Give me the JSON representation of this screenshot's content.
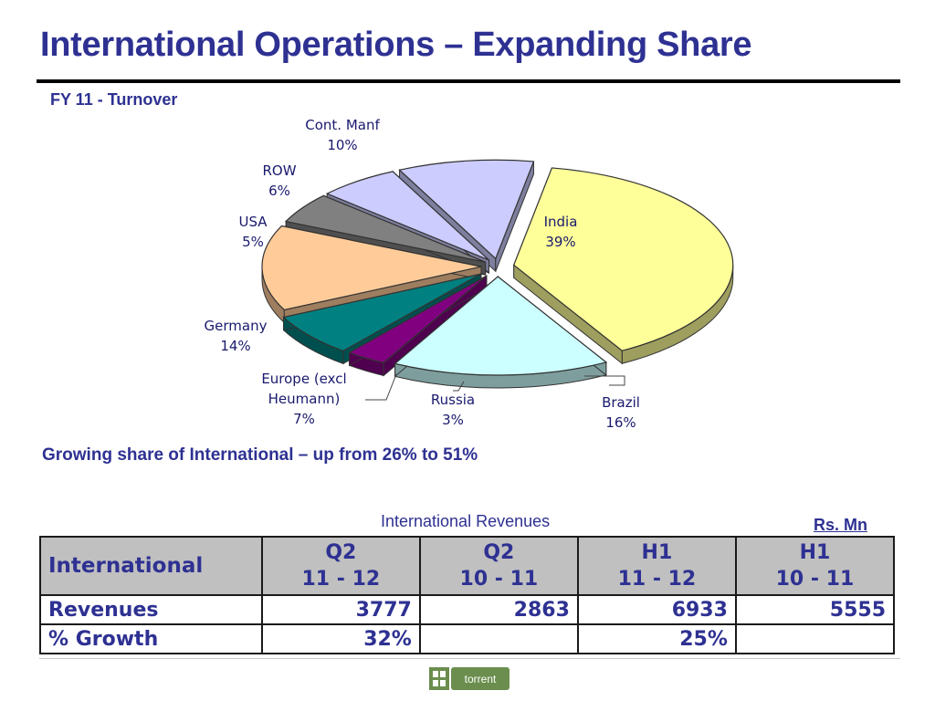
{
  "title": "International Operations – Expanding Share",
  "subtitle": "FY 11  - Turnover",
  "chart_data": {
    "type": "pie",
    "title": "FY 11  - Turnover",
    "slices": [
      {
        "name": "India",
        "label_lines": [
          "India",
          "39%"
        ],
        "value": 39,
        "color": "#ffff99"
      },
      {
        "name": "Brazil",
        "label_lines": [
          "Brazil",
          "16%"
        ],
        "value": 16,
        "color": "#ccffff"
      },
      {
        "name": "Russia",
        "label_lines": [
          "Russia",
          "3%"
        ],
        "value": 3,
        "color": "#800080"
      },
      {
        "name": "Europe (excl Heumann)",
        "label_lines": [
          "Europe (excl",
          "Heumann)",
          "7%"
        ],
        "value": 7,
        "color": "#008080"
      },
      {
        "name": "Germany",
        "label_lines": [
          "Germany",
          "14%"
        ],
        "value": 14,
        "color": "#ffcc99"
      },
      {
        "name": "USA",
        "label_lines": [
          "USA",
          "5%"
        ],
        "value": 5,
        "color": "#808080"
      },
      {
        "name": "ROW",
        "label_lines": [
          "ROW",
          "6%"
        ],
        "value": 6,
        "color": "#ccccff"
      },
      {
        "name": "Cont. Manf",
        "label_lines": [
          "Cont. Manf",
          "10%"
        ],
        "value": 10,
        "color": "#ccccff"
      }
    ]
  },
  "growth_note": "Growing share of International – up from 26% to 51%",
  "table": {
    "caption": "International Revenues",
    "units": "Rs.  Mn",
    "row_header": "International",
    "columns": [
      {
        "line1": "Q2",
        "line2": "11 - 12"
      },
      {
        "line1": "Q2",
        "line2": "10 - 11"
      },
      {
        "line1": "H1",
        "line2": "11 - 12"
      },
      {
        "line1": "H1",
        "line2": "10 - 11"
      }
    ],
    "rows": [
      {
        "label": "Revenues",
        "cells": [
          "3777",
          "2863",
          "6933",
          "5555"
        ]
      },
      {
        "label": "% Growth",
        "cells": [
          "32%",
          "",
          "25%",
          ""
        ]
      }
    ]
  },
  "logo": {
    "text": "torrent",
    "color": "#6b8e4e"
  }
}
